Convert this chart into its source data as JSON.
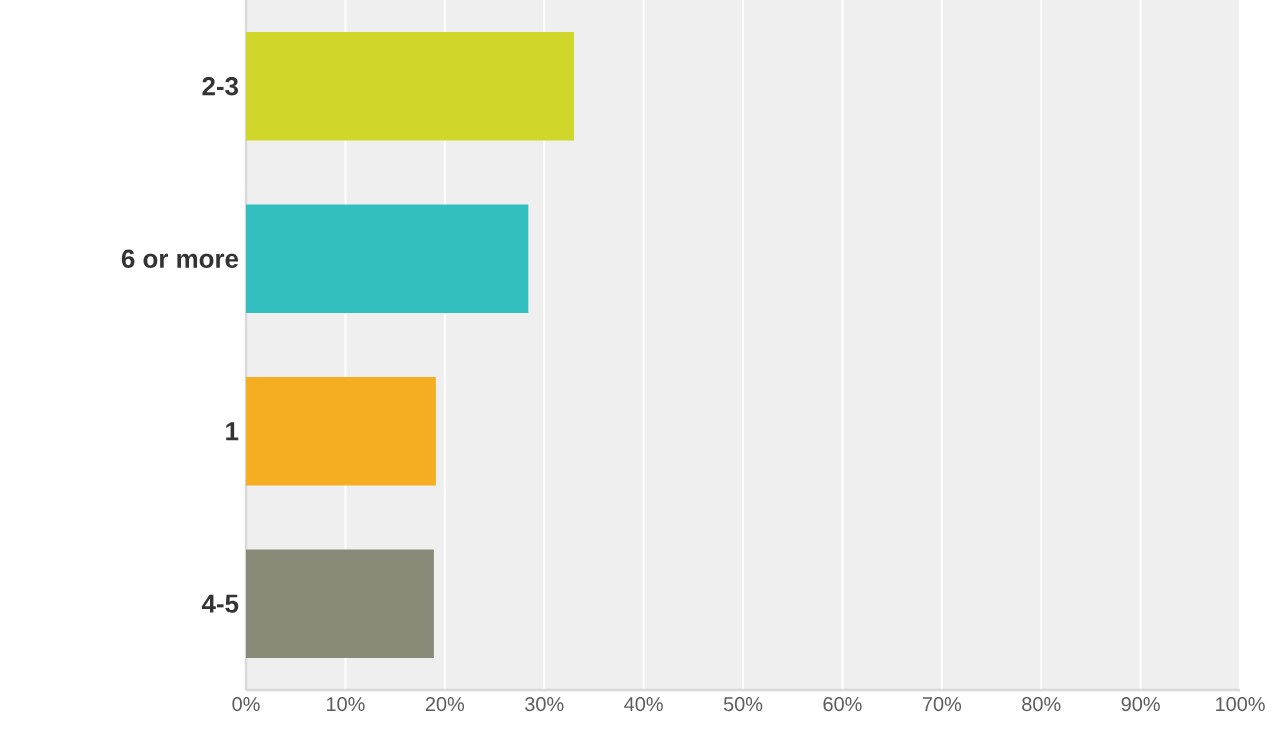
{
  "chart_data": {
    "type": "bar",
    "orientation": "horizontal",
    "categories": [
      "2-3",
      "6 or more",
      "1",
      "4-5"
    ],
    "values": [
      33.0,
      28.4,
      19.1,
      18.9
    ],
    "colors": [
      "#d0d62a",
      "#33bec0",
      "#f5ae22",
      "#8a8a78"
    ],
    "xlim": [
      0,
      100
    ],
    "xticks": [
      {
        "value": 0,
        "label": "0%"
      },
      {
        "value": 10,
        "label": "10%"
      },
      {
        "value": 20,
        "label": "20%"
      },
      {
        "value": 30,
        "label": "30%"
      },
      {
        "value": 40,
        "label": "40%"
      },
      {
        "value": 50,
        "label": "50%"
      },
      {
        "value": 60,
        "label": "60%"
      },
      {
        "value": 70,
        "label": "70%"
      },
      {
        "value": 80,
        "label": "80%"
      },
      {
        "value": 90,
        "label": "90%"
      },
      {
        "value": 100,
        "label": "100%"
      }
    ],
    "grid": "x"
  }
}
